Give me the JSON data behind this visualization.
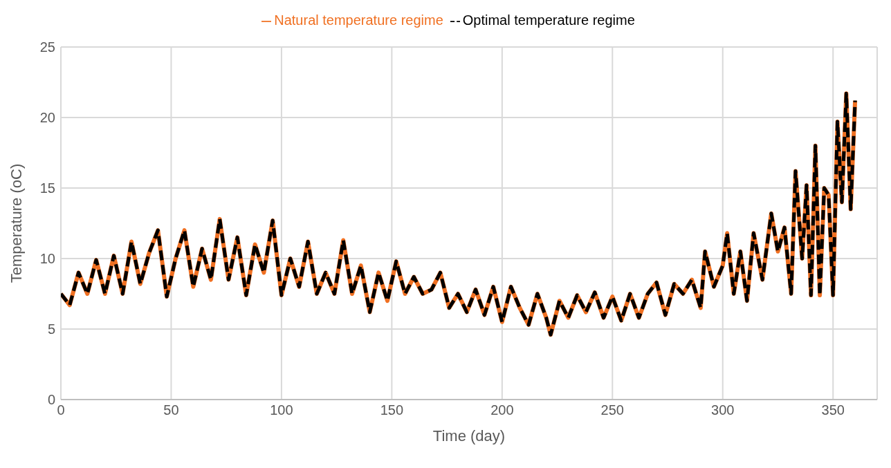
{
  "chart_data": {
    "type": "line",
    "xlabel": "Time (day)",
    "ylabel": "Temperature (oC)",
    "x": [
      0,
      4,
      8,
      12,
      16,
      20,
      24,
      28,
      32,
      36,
      40,
      44,
      48,
      52,
      56,
      60,
      64,
      68,
      72,
      76,
      80,
      84,
      88,
      92,
      96,
      100,
      104,
      108,
      112,
      116,
      120,
      124,
      128,
      132,
      136,
      140,
      144,
      148,
      152,
      156,
      160,
      164,
      168,
      172,
      176,
      180,
      184,
      188,
      192,
      196,
      200,
      204,
      208,
      212,
      216,
      220,
      222,
      226,
      230,
      234,
      238,
      242,
      246,
      250,
      254,
      258,
      262,
      266,
      270,
      274,
      278,
      282,
      286,
      290,
      292,
      296,
      300,
      302,
      305,
      308,
      311,
      314,
      318,
      322,
      325,
      328,
      331,
      333,
      336,
      338,
      340,
      342,
      344,
      346,
      348,
      350,
      352,
      354,
      356,
      358,
      360
    ],
    "series": [
      {
        "name": "Natural temperature regime",
        "color": "#f07022",
        "line_style": "solid",
        "values": [
          7.5,
          6.7,
          9.0,
          7.5,
          9.9,
          7.5,
          10.2,
          7.5,
          11.2,
          8.2,
          10.4,
          12.0,
          7.3,
          10.0,
          12.0,
          8.0,
          10.7,
          8.5,
          12.8,
          8.5,
          11.5,
          7.4,
          11.0,
          9.0,
          12.7,
          7.4,
          10.0,
          8.0,
          11.2,
          7.5,
          9.0,
          7.5,
          11.3,
          7.5,
          9.5,
          6.2,
          9.0,
          7.0,
          9.8,
          7.5,
          8.7,
          7.5,
          7.8,
          9.0,
          6.5,
          7.5,
          6.2,
          7.8,
          6.0,
          8.0,
          5.5,
          8.0,
          6.5,
          5.3,
          7.5,
          5.8,
          4.6,
          7.0,
          5.8,
          7.4,
          6.2,
          7.6,
          5.8,
          7.3,
          5.6,
          7.5,
          5.8,
          7.5,
          8.3,
          6.0,
          8.2,
          7.5,
          8.5,
          6.5,
          10.5,
          8.0,
          9.5,
          11.8,
          7.5,
          10.5,
          7.0,
          11.8,
          8.5,
          13.2,
          10.5,
          12.2,
          7.5,
          16.2,
          10.0,
          15.2,
          7.4,
          18.0,
          7.4,
          15.0,
          14.5,
          7.4,
          19.7,
          14.0,
          21.7,
          13.5,
          21.2
        ]
      },
      {
        "name": "Optimal temperature regime",
        "color": "#000000",
        "line_style": "dashed",
        "values": [
          7.5,
          6.7,
          9.0,
          7.5,
          9.9,
          7.5,
          10.2,
          7.5,
          11.2,
          8.2,
          10.4,
          12.0,
          7.3,
          10.0,
          12.0,
          8.0,
          10.7,
          8.5,
          12.8,
          8.5,
          11.5,
          7.4,
          11.0,
          9.0,
          12.7,
          7.4,
          10.0,
          8.0,
          11.2,
          7.5,
          9.0,
          7.5,
          11.3,
          7.5,
          9.5,
          6.2,
          9.0,
          7.0,
          9.8,
          7.5,
          8.7,
          7.5,
          7.8,
          9.0,
          6.5,
          7.5,
          6.2,
          7.8,
          6.0,
          8.0,
          5.5,
          8.0,
          6.5,
          5.3,
          7.5,
          5.8,
          4.6,
          7.0,
          5.8,
          7.4,
          6.2,
          7.6,
          5.8,
          7.3,
          5.6,
          7.5,
          5.8,
          7.5,
          8.3,
          6.0,
          8.2,
          7.5,
          8.5,
          6.5,
          10.5,
          8.0,
          9.5,
          11.8,
          7.5,
          10.5,
          7.0,
          11.8,
          8.5,
          13.2,
          10.5,
          12.2,
          7.5,
          16.2,
          10.0,
          15.2,
          7.4,
          18.0,
          7.4,
          15.0,
          14.5,
          7.4,
          19.7,
          14.0,
          21.7,
          13.5,
          21.2
        ]
      }
    ],
    "xlim": [
      0,
      370
    ],
    "xticks": [
      0,
      50,
      100,
      150,
      200,
      250,
      300,
      350
    ],
    "ylim": [
      0,
      25
    ],
    "yticks": [
      0,
      5,
      10,
      15,
      20,
      25
    ],
    "grid": true,
    "legend": "top",
    "marker": "none"
  }
}
